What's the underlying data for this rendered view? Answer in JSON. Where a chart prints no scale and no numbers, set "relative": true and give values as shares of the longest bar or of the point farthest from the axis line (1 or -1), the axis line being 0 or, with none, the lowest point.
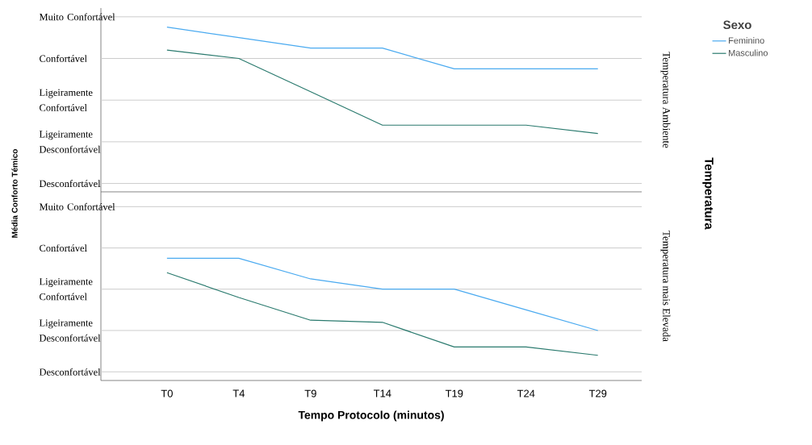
{
  "chart_data": [
    {
      "type": "line",
      "relative": true,
      "ylabel": "Média Conforto Témico",
      "y2label": "Temperatura Ambiente",
      "legend_title": "Sexo",
      "annotations": [
        "Temperatura"
      ],
      "categories": [
        null,
        null,
        null,
        null,
        null,
        null,
        null
      ],
      "series": [
        {
          "name": "Feminino",
          "color": "#4aaaf0",
          "values": [
            1,
            0.937,
            0.873,
            0.873,
            0.747,
            0.747,
            0.747
          ]
        },
        {
          "name": "Masculino",
          "color": "#2a7a6e",
          "values": [
            0.861,
            0.81,
            0.608,
            0.405,
            0.405,
            0.405,
            0.354
          ]
        }
      ],
      "ref_lines": [
        {
          "axis": "y",
          "value": 1.063,
          "label": "Muito Confortável"
        },
        {
          "axis": "y",
          "value": 0.81,
          "label": "Confortável"
        },
        {
          "axis": "y",
          "value": 0.557,
          "label": "Ligeiramente Confortável"
        },
        {
          "axis": "y",
          "value": 0.304,
          "label": "Ligeiramente Desconfortável"
        },
        {
          "axis": "y",
          "value": 0.051,
          "label": "Desconfortável"
        }
      ],
      "legend": "right",
      "marker": "none",
      "line_style": "solid"
    },
    {
      "type": "line",
      "relative": true,
      "xlabel": "Tempo Protocolo (minutos)",
      "y2label": "Temperatura mais Elevada",
      "categories": [
        "T0",
        "T4",
        "T9",
        "T14",
        "T19",
        "T24",
        "T29"
      ],
      "series": [
        {
          "color": "#4aaaf0",
          "values": [
            1,
            1,
            0.831,
            0.747,
            0.747,
            0.578,
            0.409
          ]
        },
        {
          "color": "#2a7a6e",
          "values": [
            0.882,
            0.679,
            0.493,
            0.476,
            0.274,
            0.274,
            0.206
          ]
        }
      ],
      "ref_lines": [
        {
          "axis": "y",
          "value": 1.422,
          "label": "Muito Confortável"
        },
        {
          "axis": "y",
          "value": 1.084,
          "label": "Confortável"
        },
        {
          "axis": "y",
          "value": 0.747,
          "label": "Ligeiramente Confortável"
        },
        {
          "axis": "y",
          "value": 0.409,
          "label": "Ligeiramente Desconfortável"
        },
        {
          "axis": "y",
          "value": 0.071,
          "label": "Desconfortável"
        }
      ],
      "marker": "none",
      "line_style": "solid"
    }
  ]
}
